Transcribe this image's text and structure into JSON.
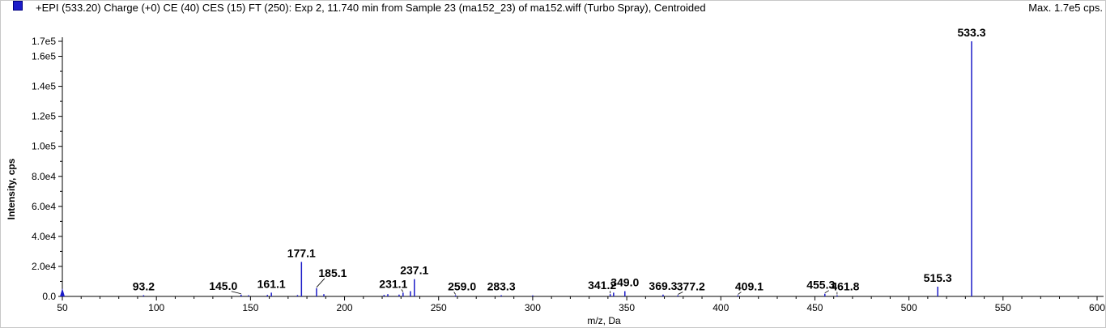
{
  "header": {
    "title": "+EPI (533.20) Charge (+0) CE (40) CES (15) FT (250): Exp 2, 11.740 min from Sample 23 (ma152_23) of ma152.wiff (Turbo Spray), Centroided",
    "max_label": "Max. 1.7e5 cps.",
    "series_color": "#1c1cc8"
  },
  "chart_data": {
    "type": "bar",
    "title": "+EPI (533.20) Charge (+0) CE (40) CES (15) FT (250): Exp 2, 11.740 min from Sample 23 (ma152_23) of ma152.wiff (Turbo Spray), Centroided",
    "xlabel": "m/z, Da",
    "ylabel": "Intensity, cps",
    "xlim": [
      50,
      600
    ],
    "ylim": [
      0,
      170000
    ],
    "x_ticks": [
      50,
      100,
      150,
      200,
      250,
      300,
      350,
      400,
      450,
      500,
      550,
      600
    ],
    "x_tick_labels": [
      "50",
      "100",
      "150",
      "200",
      "250",
      "300",
      "350",
      "400",
      "450",
      "500",
      "550",
      "600"
    ],
    "y_ticks": [
      0,
      20000,
      40000,
      60000,
      80000,
      100000,
      120000,
      140000,
      160000,
      170000
    ],
    "y_tick_labels": [
      "0.0",
      "2.0e4",
      "4.0e4",
      "6.0e4",
      "8.0e4",
      "1.0e5",
      "1.2e5",
      "1.4e5",
      "1.6e5",
      "1.7e5"
    ],
    "grid": false,
    "peaks": [
      {
        "mz": 50.2,
        "intensity": 2500
      },
      {
        "mz": 93.2,
        "intensity": 800,
        "label": "93.2"
      },
      {
        "mz": 145.0,
        "intensity": 1200,
        "label": "145.0"
      },
      {
        "mz": 149.0,
        "intensity": 800
      },
      {
        "mz": 159.0,
        "intensity": 1000
      },
      {
        "mz": 161.1,
        "intensity": 2500,
        "label": "161.1"
      },
      {
        "mz": 175.0,
        "intensity": 900
      },
      {
        "mz": 177.1,
        "intensity": 23000,
        "label": "177.1"
      },
      {
        "mz": 185.1,
        "intensity": 5500,
        "label": "185.1"
      },
      {
        "mz": 189.0,
        "intensity": 1500
      },
      {
        "mz": 221.0,
        "intensity": 1000
      },
      {
        "mz": 223.0,
        "intensity": 1500
      },
      {
        "mz": 229.0,
        "intensity": 1200
      },
      {
        "mz": 231.1,
        "intensity": 2500,
        "label": "231.1"
      },
      {
        "mz": 235.0,
        "intensity": 3500
      },
      {
        "mz": 237.1,
        "intensity": 11500,
        "label": "237.1"
      },
      {
        "mz": 259.0,
        "intensity": 800,
        "label": "259.0"
      },
      {
        "mz": 283.3,
        "intensity": 800,
        "label": "283.3"
      },
      {
        "mz": 300.0,
        "intensity": 700
      },
      {
        "mz": 341.2,
        "intensity": 1500,
        "label": "341.2"
      },
      {
        "mz": 343.0,
        "intensity": 2500
      },
      {
        "mz": 349.0,
        "intensity": 3500,
        "label": "349.0"
      },
      {
        "mz": 369.3,
        "intensity": 1200,
        "label": "369.3"
      },
      {
        "mz": 377.2,
        "intensity": 800,
        "label": "377.2"
      },
      {
        "mz": 409.1,
        "intensity": 800,
        "label": "409.1"
      },
      {
        "mz": 455.3,
        "intensity": 1800,
        "label": "455.3"
      },
      {
        "mz": 461.8,
        "intensity": 800,
        "label": "461.8"
      },
      {
        "mz": 515.3,
        "intensity": 6500,
        "label": "515.3"
      },
      {
        "mz": 533.3,
        "intensity": 170000,
        "label": "533.3"
      }
    ]
  }
}
